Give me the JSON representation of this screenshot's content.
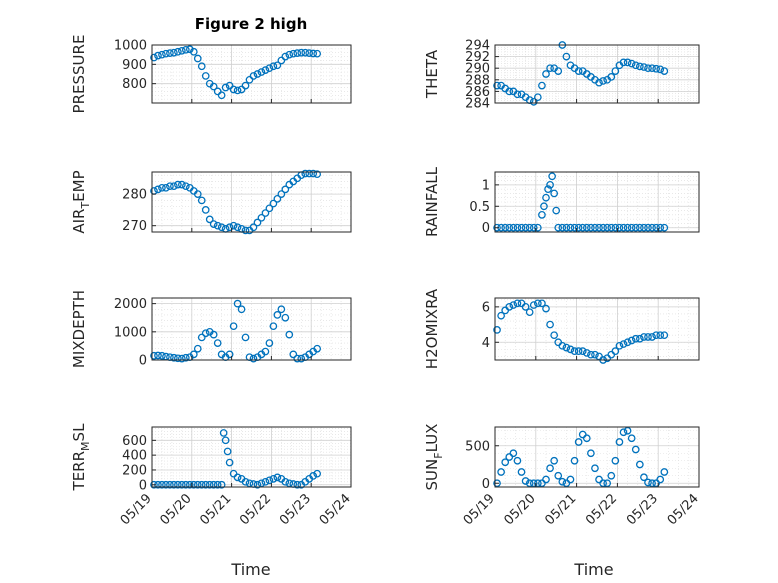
{
  "figure": {
    "title": "Figure 2 high",
    "xlabel": "Time"
  },
  "marker_color": "#0072BD",
  "chart_data": [
    {
      "type": "scatter",
      "title": "Figure 2 high",
      "ylabel": "PRESSURE",
      "xlim": [
        0,
        5
      ],
      "ylim": [
        700,
        1000
      ],
      "yticks": [
        800,
        900,
        1000
      ],
      "x": [
        0.05,
        0.15,
        0.25,
        0.35,
        0.45,
        0.55,
        0.65,
        0.75,
        0.85,
        0.95,
        1.05,
        1.15,
        1.25,
        1.35,
        1.45,
        1.55,
        1.65,
        1.75,
        1.85,
        1.95,
        2.05,
        2.15,
        2.25,
        2.35,
        2.45,
        2.55,
        2.65,
        2.75,
        2.85,
        2.95,
        3.05,
        3.15,
        3.25,
        3.35,
        3.45,
        3.55,
        3.65,
        3.75,
        3.85,
        3.95,
        4.05,
        4.15
      ],
      "y": [
        935,
        945,
        950,
        955,
        958,
        960,
        965,
        970,
        975,
        978,
        965,
        930,
        890,
        840,
        800,
        785,
        760,
        740,
        780,
        790,
        770,
        765,
        770,
        790,
        820,
        840,
        850,
        860,
        870,
        880,
        890,
        895,
        920,
        940,
        950,
        955,
        958,
        960,
        960,
        958,
        956,
        955
      ]
    },
    {
      "type": "scatter",
      "ylabel": "THETA",
      "xlim": [
        0,
        5
      ],
      "ylim": [
        284,
        294
      ],
      "yticks": [
        284,
        286,
        288,
        290,
        292,
        294
      ],
      "x": [
        0.05,
        0.15,
        0.25,
        0.35,
        0.45,
        0.55,
        0.65,
        0.75,
        0.85,
        0.95,
        1.05,
        1.15,
        1.25,
        1.35,
        1.45,
        1.55,
        1.65,
        1.75,
        1.85,
        1.95,
        2.05,
        2.15,
        2.25,
        2.35,
        2.45,
        2.55,
        2.65,
        2.75,
        2.85,
        2.95,
        3.05,
        3.15,
        3.25,
        3.35,
        3.45,
        3.55,
        3.65,
        3.75,
        3.85,
        3.95,
        4.05,
        4.15
      ],
      "y": [
        287,
        287,
        286.5,
        286,
        286,
        285.5,
        285.5,
        285,
        284.5,
        284.2,
        285,
        287,
        289,
        290,
        290,
        289.5,
        294,
        292,
        290.5,
        290,
        289.5,
        289.5,
        289,
        288.5,
        288,
        287.5,
        287.8,
        288,
        288.5,
        289.5,
        290.5,
        291,
        291,
        290.8,
        290.5,
        290.3,
        290.2,
        290,
        290,
        289.9,
        289.8,
        289.5
      ]
    },
    {
      "type": "scatter",
      "ylabel": "AIR_TEMP",
      "xlim": [
        0,
        5
      ],
      "ylim": [
        268,
        287
      ],
      "yticks": [
        270,
        280
      ],
      "x": [
        0.05,
        0.15,
        0.25,
        0.35,
        0.45,
        0.55,
        0.65,
        0.75,
        0.85,
        0.95,
        1.05,
        1.15,
        1.25,
        1.35,
        1.45,
        1.55,
        1.65,
        1.75,
        1.85,
        1.95,
        2.05,
        2.15,
        2.25,
        2.35,
        2.45,
        2.55,
        2.65,
        2.75,
        2.85,
        2.95,
        3.05,
        3.15,
        3.25,
        3.35,
        3.45,
        3.55,
        3.65,
        3.75,
        3.85,
        3.95,
        4.05,
        4.15
      ],
      "y": [
        281,
        281.5,
        282,
        282,
        282.5,
        282.5,
        283,
        283,
        282.5,
        282,
        281,
        280,
        278,
        275,
        272,
        270.5,
        270,
        269.5,
        269,
        269.5,
        270,
        269.5,
        269,
        268.5,
        268.5,
        269.5,
        271,
        272.5,
        274,
        275.5,
        277,
        278.5,
        280,
        281.5,
        283,
        284,
        285,
        286,
        286.5,
        286.5,
        286.5,
        286.3
      ]
    },
    {
      "type": "scatter",
      "ylabel": "RAINFALL",
      "xlim": [
        0,
        5
      ],
      "ylim": [
        -0.1,
        1.3
      ],
      "yticks": [
        0,
        0.5,
        1
      ],
      "x": [
        0.05,
        0.15,
        0.25,
        0.35,
        0.45,
        0.55,
        0.65,
        0.75,
        0.85,
        0.95,
        1.05,
        1.15,
        1.2,
        1.25,
        1.3,
        1.35,
        1.4,
        1.45,
        1.5,
        1.55,
        1.65,
        1.75,
        1.85,
        1.95,
        2.05,
        2.15,
        2.25,
        2.35,
        2.45,
        2.55,
        2.65,
        2.75,
        2.85,
        2.95,
        3.05,
        3.15,
        3.25,
        3.35,
        3.45,
        3.55,
        3.65,
        3.75,
        3.85,
        3.95,
        4.05,
        4.15
      ],
      "y": [
        0,
        0,
        0,
        0,
        0,
        0,
        0,
        0,
        0,
        0,
        0,
        0.3,
        0.5,
        0.7,
        0.9,
        1.0,
        1.2,
        0.8,
        0.4,
        0,
        0,
        0,
        0,
        0,
        0,
        0,
        0,
        0,
        0,
        0,
        0,
        0,
        0,
        0,
        0,
        0,
        0,
        0,
        0,
        0,
        0,
        0,
        0,
        0,
        0,
        0
      ]
    },
    {
      "type": "scatter",
      "ylabel": "MIXDEPTH",
      "xlim": [
        0,
        5
      ],
      "ylim": [
        0,
        2200
      ],
      "yticks": [
        0,
        1000,
        2000
      ],
      "x": [
        0.05,
        0.15,
        0.25,
        0.35,
        0.45,
        0.55,
        0.65,
        0.75,
        0.85,
        0.95,
        1.05,
        1.15,
        1.25,
        1.35,
        1.45,
        1.55,
        1.65,
        1.75,
        1.85,
        1.95,
        2.05,
        2.15,
        2.25,
        2.35,
        2.45,
        2.55,
        2.65,
        2.75,
        2.85,
        2.95,
        3.05,
        3.15,
        3.25,
        3.35,
        3.45,
        3.55,
        3.65,
        3.75,
        3.85,
        3.95,
        4.05,
        4.15
      ],
      "y": [
        150,
        160,
        150,
        120,
        100,
        80,
        60,
        50,
        80,
        100,
        200,
        400,
        800,
        950,
        1000,
        900,
        600,
        200,
        100,
        200,
        1200,
        2000,
        1800,
        800,
        100,
        50,
        100,
        200,
        300,
        600,
        1200,
        1600,
        1800,
        1500,
        900,
        200,
        50,
        50,
        100,
        200,
        300,
        400
      ]
    },
    {
      "type": "scatter",
      "ylabel": "H2OMIXRA",
      "xlim": [
        0,
        5
      ],
      "ylim": [
        3,
        6.5
      ],
      "yticks": [
        4,
        6
      ],
      "x": [
        0.05,
        0.15,
        0.25,
        0.35,
        0.45,
        0.55,
        0.65,
        0.75,
        0.85,
        0.95,
        1.05,
        1.15,
        1.25,
        1.35,
        1.45,
        1.55,
        1.65,
        1.75,
        1.85,
        1.95,
        2.05,
        2.15,
        2.25,
        2.35,
        2.45,
        2.55,
        2.65,
        2.75,
        2.85,
        2.95,
        3.05,
        3.15,
        3.25,
        3.35,
        3.45,
        3.55,
        3.65,
        3.75,
        3.85,
        3.95,
        4.05,
        4.15
      ],
      "y": [
        4.7,
        5.5,
        5.8,
        6.0,
        6.1,
        6.2,
        6.2,
        6.0,
        5.7,
        6.1,
        6.2,
        6.2,
        5.9,
        5.0,
        4.4,
        4.0,
        3.8,
        3.7,
        3.6,
        3.5,
        3.5,
        3.5,
        3.4,
        3.3,
        3.3,
        3.2,
        3.0,
        3.1,
        3.3,
        3.5,
        3.8,
        3.9,
        4.0,
        4.1,
        4.2,
        4.2,
        4.3,
        4.3,
        4.3,
        4.4,
        4.4,
        4.4
      ]
    },
    {
      "type": "scatter",
      "ylabel": "TERR_MSL",
      "xlim": [
        0,
        5
      ],
      "ylim": [
        -30,
        780
      ],
      "yticks": [
        0,
        200,
        400,
        600
      ],
      "x": [
        0.05,
        0.15,
        0.25,
        0.35,
        0.45,
        0.55,
        0.65,
        0.75,
        0.85,
        0.95,
        1.05,
        1.15,
        1.25,
        1.35,
        1.45,
        1.55,
        1.65,
        1.75,
        1.8,
        1.85,
        1.9,
        1.95,
        2.05,
        2.15,
        2.25,
        2.35,
        2.45,
        2.55,
        2.65,
        2.75,
        2.85,
        2.95,
        3.05,
        3.15,
        3.25,
        3.35,
        3.45,
        3.55,
        3.65,
        3.75,
        3.85,
        3.95,
        4.05,
        4.15
      ],
      "y": [
        0,
        0,
        0,
        0,
        0,
        0,
        0,
        0,
        0,
        0,
        0,
        0,
        0,
        0,
        0,
        0,
        0,
        0,
        700,
        600,
        450,
        300,
        150,
        100,
        80,
        40,
        20,
        10,
        0,
        20,
        40,
        60,
        80,
        100,
        80,
        40,
        20,
        10,
        0,
        0,
        40,
        80,
        120,
        150
      ]
    },
    {
      "type": "scatter",
      "ylabel": "SUN_FLUX",
      "xlim": [
        0,
        5
      ],
      "ylim": [
        -50,
        750
      ],
      "yticks": [
        0,
        500
      ],
      "x": [
        0.05,
        0.15,
        0.25,
        0.35,
        0.45,
        0.55,
        0.65,
        0.75,
        0.85,
        0.95,
        1.05,
        1.15,
        1.25,
        1.35,
        1.45,
        1.55,
        1.65,
        1.75,
        1.85,
        1.95,
        2.05,
        2.15,
        2.25,
        2.35,
        2.45,
        2.55,
        2.65,
        2.75,
        2.85,
        2.95,
        3.05,
        3.15,
        3.25,
        3.35,
        3.45,
        3.55,
        3.65,
        3.75,
        3.85,
        3.95,
        4.05,
        4.15
      ],
      "y": [
        0,
        150,
        280,
        350,
        400,
        300,
        150,
        30,
        0,
        0,
        0,
        0,
        50,
        200,
        300,
        100,
        20,
        0,
        50,
        300,
        550,
        650,
        600,
        400,
        200,
        50,
        0,
        0,
        100,
        300,
        550,
        680,
        700,
        600,
        450,
        250,
        80,
        10,
        0,
        0,
        50,
        150
      ]
    }
  ],
  "xaxis": {
    "ticklabels": [
      "05/19",
      "05/20",
      "05/21",
      "05/22",
      "05/23",
      "05/24"
    ]
  }
}
